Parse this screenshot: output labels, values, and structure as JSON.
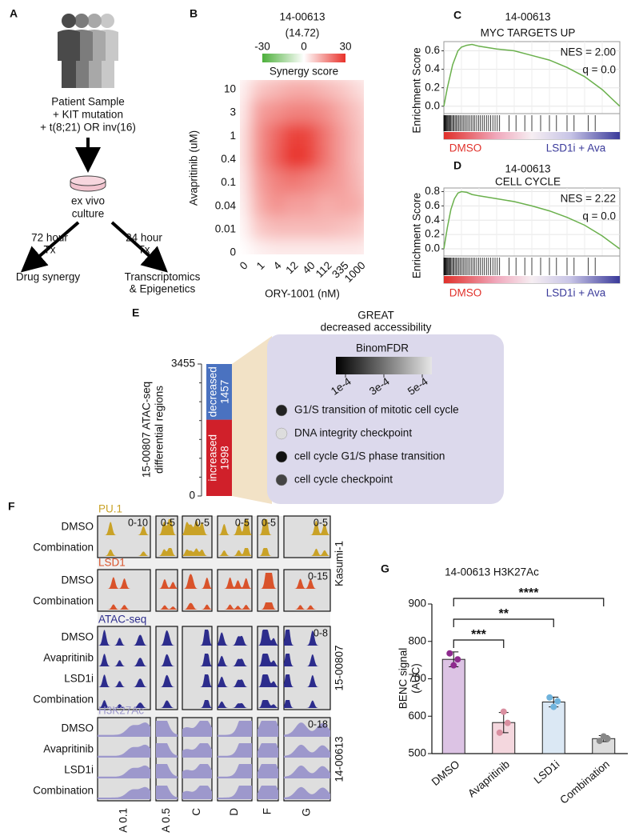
{
  "panel_labels": [
    "A",
    "B",
    "C",
    "D",
    "E",
    "F",
    "G"
  ],
  "workflow": {
    "sample_lines": [
      "Patient Sample",
      "+ KIT mutation",
      "+ t(8;21) OR inv(16)"
    ],
    "culture_lines": [
      "ex vivo",
      "culture"
    ],
    "left_arm": [
      "72 hour",
      "Tx"
    ],
    "right_arm": [
      "24 hour",
      "Tx"
    ],
    "left_outcome": [
      "Drug synergy"
    ],
    "right_outcome": [
      "Transcriptomics",
      "& Epigenetics"
    ]
  },
  "chart_data": [
    {
      "type": "heatmap",
      "title": "14-00613",
      "subtitle": "(14.72)",
      "colorbar_label": "Synergy score",
      "colorbar_lim": [
        -30,
        30
      ],
      "colorbar_ticks": [
        -30,
        0,
        30
      ],
      "colors": [
        "#4caf3a",
        "#ffffff",
        "#e8312a"
      ],
      "xlabel": "ORY-1001 (nM)",
      "ylabel": "Avapritinib (uM)",
      "x_categories": [
        "0",
        "1",
        "4",
        "12",
        "40",
        "112",
        "335",
        "1000"
      ],
      "y_categories": [
        "10",
        "3",
        "1",
        "0.4",
        "0.1",
        "0.04",
        "0.01",
        "0"
      ],
      "values": [
        [
          2,
          8,
          10,
          12,
          12,
          10,
          8,
          5
        ],
        [
          3,
          14,
          16,
          18,
          18,
          16,
          12,
          8
        ],
        [
          4,
          16,
          22,
          28,
          27,
          20,
          14,
          9
        ],
        [
          4,
          16,
          23,
          30,
          28,
          20,
          14,
          9
        ],
        [
          3,
          14,
          18,
          20,
          18,
          16,
          14,
          10
        ],
        [
          2,
          12,
          16,
          14,
          14,
          12,
          13,
          12
        ],
        [
          1,
          8,
          10,
          10,
          10,
          10,
          9,
          8
        ],
        [
          0,
          2,
          3,
          3,
          3,
          3,
          3,
          3
        ]
      ]
    },
    {
      "type": "line",
      "title": "14-00613",
      "subtitle": "MYC TARGETS UP",
      "ylabel": "Enrichment Score",
      "color": "#6ab04c",
      "grid": true,
      "xlim": [
        0,
        1
      ],
      "ylim": [
        -0.08,
        0.7
      ],
      "yticks": [
        {
          "value": 0,
          "label": "0.0"
        },
        0.2,
        0.4,
        0.6
      ],
      "x": [
        0,
        0.02,
        0.05,
        0.08,
        0.1,
        0.13,
        0.16,
        0.2,
        0.3,
        0.4,
        0.5,
        0.6,
        0.7,
        0.8,
        0.9,
        1.0
      ],
      "values": [
        0,
        0.2,
        0.45,
        0.6,
        0.64,
        0.66,
        0.67,
        0.65,
        0.62,
        0.6,
        0.55,
        0.5,
        0.42,
        0.32,
        0.18,
        0
      ],
      "annotations": [
        "NES = 2.00",
        "q = 0.0"
      ],
      "phenotypes": [
        {
          "name": "DMSO",
          "color": "#e0302a"
        },
        {
          "name": "LSD1i + Ava",
          "color": "#3a3a9a"
        }
      ]
    },
    {
      "type": "line",
      "title": "14-00613",
      "subtitle": "CELL CYCLE",
      "ylabel": "Enrichment Score",
      "color": "#6ab04c",
      "grid": true,
      "xlim": [
        0,
        1
      ],
      "ylim": [
        -0.1,
        0.85
      ],
      "yticks": [
        {
          "value": 0,
          "label": "0.0"
        },
        0.2,
        0.4,
        0.6,
        0.8
      ],
      "x": [
        0,
        0.02,
        0.04,
        0.06,
        0.08,
        0.1,
        0.13,
        0.16,
        0.2,
        0.3,
        0.4,
        0.5,
        0.6,
        0.7,
        0.8,
        0.9,
        1.0
      ],
      "values": [
        0,
        0.3,
        0.55,
        0.7,
        0.78,
        0.8,
        0.79,
        0.76,
        0.74,
        0.7,
        0.66,
        0.6,
        0.53,
        0.44,
        0.33,
        0.18,
        0
      ],
      "annotations": [
        "NES = 2.22",
        "q = 0.0"
      ],
      "phenotypes": [
        {
          "name": "DMSO",
          "color": "#e0302a"
        },
        {
          "name": "LSD1i + Ava",
          "color": "#3a3a9a"
        }
      ]
    },
    {
      "type": "stacked_bar",
      "title": "GREAT",
      "subtitle": "decreased accessibility",
      "ylabel": [
        "15-00807 ATAC-seq",
        "differential regions"
      ],
      "ylim": [
        0,
        3455
      ],
      "yticks": [
        0,
        3455
      ],
      "series": [
        {
          "name": "increased",
          "color": "#d0202a",
          "values": [
            1998
          ]
        },
        {
          "name": "decreased",
          "color": "#4a72c0",
          "values": [
            1457
          ]
        }
      ],
      "legend_title": "BinomFDR",
      "colorbar_lim": [
        5e-05,
        0.00055
      ],
      "colorbar_ticks": [
        {
          "value": 0.0001,
          "label": "1e-4"
        },
        {
          "value": 0.0003,
          "label": "3e-4"
        },
        {
          "value": 0.0005,
          "label": "5e-4"
        }
      ],
      "terms": [
        {
          "name": "G1/S transition of mitotic cell cycle",
          "color": "#222222"
        },
        {
          "name": "DNA integrity checkpoint",
          "color": "#dddddd"
        },
        {
          "name": "cell cycle G1/S phase transition",
          "color": "#111111"
        },
        {
          "name": "cell cycle checkpoint",
          "color": "#444444"
        }
      ]
    },
    {
      "type": "bar",
      "title": "14-00613 H3K27Ac",
      "ylabel": [
        "BENC signal",
        "(AUC)"
      ],
      "categories": [
        "DMSO",
        "Avapritinib",
        "LSD1i",
        "Combination"
      ],
      "values": [
        752,
        583,
        638,
        540
      ],
      "errors": [
        20,
        27,
        13,
        8
      ],
      "points": [
        [
          768,
          736,
          752
        ],
        [
          556,
          612,
          582
        ],
        [
          650,
          625,
          640
        ],
        [
          534,
          546,
          540
        ]
      ],
      "colors": [
        "#dcc3e4",
        "#f4d7de",
        "#dbe8f4",
        "#dddddd"
      ],
      "point_colors": [
        "#8e2a8e",
        "#d98fa0",
        "#6fb3dc",
        "#888888"
      ],
      "ylim": [
        500,
        900
      ],
      "yticks": [
        500,
        600,
        700,
        800,
        900
      ],
      "significance": [
        null,
        "***",
        "**",
        "****"
      ]
    }
  ],
  "genome_tracks": {
    "groups": [
      {
        "name": "PU.1",
        "color": "#c9a227",
        "rows": [
          "DMSO",
          "Combination"
        ],
        "scales": [
          "0-10",
          "0-5",
          "0-5",
          "0-5",
          "0-5",
          "0-5"
        ]
      },
      {
        "name": "LSD1",
        "color": "#d9532b",
        "rows": [
          "DMSO",
          "Combination"
        ],
        "scales": [
          null,
          null,
          null,
          null,
          null,
          "0-15"
        ]
      },
      {
        "name": "ATAC-seq",
        "color": "#2c2c8c",
        "rows": [
          "DMSO",
          "Avapritinib",
          "LSD1i",
          "Combination"
        ],
        "scales": [
          null,
          null,
          null,
          null,
          null,
          "0-8"
        ]
      },
      {
        "name": "H3K27Ac",
        "color": "#9d98cc",
        "rows": [
          "DMSO",
          "Avapritinib",
          "LSD1i",
          "Combination"
        ],
        "scales": [
          null,
          null,
          null,
          null,
          null,
          "0-18"
        ]
      }
    ],
    "cell_lines": [
      "Kasumi-1",
      "15-00807",
      "14-00613"
    ],
    "regions": [
      "A 0.1",
      "A 0.5",
      "C",
      "D",
      "F",
      "G"
    ]
  }
}
